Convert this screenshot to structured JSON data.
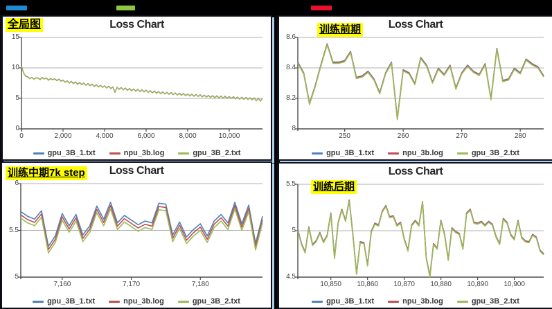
{
  "page": {
    "background": "#000000",
    "grid_color": "#b0b0b0",
    "axis_color": "#4d4d4d"
  },
  "top_bars": [
    {
      "name": "blue-bar",
      "color": "#1d8ad2"
    },
    {
      "name": "green-bar",
      "color": "#8ec641"
    },
    {
      "name": "red-bar",
      "color": "#e8112d"
    }
  ],
  "chart_data": [
    {
      "type": "line",
      "title": "Loss Chart",
      "annotation": "全局图",
      "xlim": [
        0,
        11600
      ],
      "ylim": [
        0,
        15
      ],
      "yticks": [
        {
          "v": 0,
          "label": "0"
        },
        {
          "v": 5,
          "label": "5"
        },
        {
          "v": 10,
          "label": "10"
        },
        {
          "v": 15,
          "label": "15"
        }
      ],
      "xticks": [
        {
          "v": 0,
          "label": "0"
        },
        {
          "v": 2000,
          "label": "2,000"
        },
        {
          "v": 4000,
          "label": "4,000"
        },
        {
          "v": 6000,
          "label": "6,000"
        },
        {
          "v": 8000,
          "label": "8,000"
        },
        {
          "v": 10000,
          "label": "10,000"
        }
      ],
      "x0": 0,
      "dx": 100,
      "line_width": 1.3,
      "series": [
        {
          "name": "gpu_3B_1.txt",
          "color": "#4f81bd",
          "offset": 0.05
        },
        {
          "name": "npu_3b.log",
          "color": "#c0504d",
          "offset": 0.025
        },
        {
          "name": "gpu_3B_2.txt",
          "color": "#9bbb59",
          "offset": 0
        }
      ],
      "values": [
        10.3,
        9.15,
        8.6,
        8.5,
        8.2,
        8.42,
        8.1,
        8.35,
        8.28,
        8.05,
        8.38,
        8.16,
        8.3,
        7.95,
        8.22,
        8.02,
        8.18,
        7.88,
        8.12,
        7.8,
        7.95,
        7.62,
        7.85,
        7.48,
        7.76,
        7.4,
        7.65,
        7.3,
        7.55,
        7.22,
        7.48,
        7.12,
        7.38,
        7.05,
        7.3,
        6.92,
        7.2,
        6.85,
        7.1,
        6.78,
        7.02,
        6.68,
        6.95,
        6.58,
        6.85,
        5.95,
        6.78,
        6.45,
        6.72,
        6.38,
        6.65,
        6.3,
        6.58,
        6.22,
        6.5,
        6.15,
        6.45,
        6.08,
        6.38,
        6.02,
        6.3,
        5.95,
        6.22,
        5.88,
        6.15,
        5.82,
        6.08,
        5.75,
        6.02,
        5.7,
        5.95,
        5.64,
        5.9,
        5.58,
        5.85,
        5.52,
        5.8,
        5.48,
        5.75,
        5.42,
        5.68,
        5.38,
        5.65,
        5.32,
        5.6,
        5.28,
        5.55,
        5.22,
        5.5,
        5.18,
        5.45,
        5.12,
        5.42,
        5.08,
        5.38,
        5.05,
        5.35,
        5.0,
        5.3,
        4.98,
        5.26,
        4.95,
        5.22,
        4.9,
        5.18,
        4.85,
        5.15,
        4.82,
        5.12,
        4.78,
        5.08,
        4.72,
        5.05,
        4.58,
        5.0,
        4.52,
        4.95
      ]
    },
    {
      "type": "line",
      "title": "Loss Chart",
      "annotation": "训练前期",
      "xlim": [
        242,
        284
      ],
      "ylim": [
        8,
        8.6
      ],
      "yticks": [
        {
          "v": 8,
          "label": "8"
        },
        {
          "v": 8.2,
          "label": "8.2"
        },
        {
          "v": 8.4,
          "label": "8.4"
        },
        {
          "v": 8.6,
          "label": "8.6"
        }
      ],
      "xticks": [
        {
          "v": 250,
          "label": "250"
        },
        {
          "v": 260,
          "label": "260"
        },
        {
          "v": 270,
          "label": "270"
        },
        {
          "v": 280,
          "label": "280"
        }
      ],
      "x0": 242,
      "dx": 1,
      "line_width": 1.6,
      "series": [
        {
          "name": "gpu_3B_1.txt",
          "color": "#4f81bd",
          "offset": 0.008
        },
        {
          "name": "npu_3b.log",
          "color": "#c0504d",
          "offset": 0.005
        },
        {
          "name": "gpu_3B_2.txt",
          "color": "#9bbb59",
          "offset": 0
        }
      ],
      "values": [
        8.43,
        8.36,
        8.16,
        8.28,
        8.42,
        8.55,
        8.43,
        8.43,
        8.44,
        8.5,
        8.33,
        8.34,
        8.37,
        8.32,
        8.23,
        8.36,
        8.43,
        8.06,
        8.38,
        8.36,
        8.29,
        8.46,
        8.41,
        8.3,
        8.39,
        8.35,
        8.41,
        8.26,
        8.36,
        8.41,
        8.37,
        8.35,
        8.42,
        8.19,
        8.52,
        8.31,
        8.32,
        8.39,
        8.36,
        8.45,
        8.42,
        8.4,
        8.34
      ]
    },
    {
      "type": "line",
      "title": "Loss Chart",
      "annotation": "训练中期7k step",
      "xlim": [
        7154,
        7189
      ],
      "ylim": [
        5,
        6
      ],
      "yticks": [
        {
          "v": 5,
          "label": "5"
        },
        {
          "v": 5.5,
          "label": "5.5"
        },
        {
          "v": 6,
          "label": "6"
        }
      ],
      "xticks": [
        {
          "v": 7160,
          "label": "7,160"
        },
        {
          "v": 7170,
          "label": "7,170"
        },
        {
          "v": 7180,
          "label": "7,180"
        }
      ],
      "x0": 7154,
      "dx": 1,
      "line_width": 1.6,
      "series": [
        {
          "name": "gpu_3B_1.txt",
          "color": "#4f81bd",
          "offset": 0
        },
        {
          "name": "npu_3b.log",
          "color": "#c0504d",
          "offset": -0.035
        },
        {
          "name": "gpu_3B_2.txt",
          "color": "#9bbb59",
          "offset": -0.07
        }
      ],
      "values": [
        5.7,
        5.65,
        5.62,
        5.71,
        5.33,
        5.44,
        5.68,
        5.55,
        5.67,
        5.45,
        5.55,
        5.76,
        5.62,
        5.8,
        5.58,
        5.66,
        5.61,
        5.56,
        5.6,
        5.58,
        5.79,
        5.78,
        5.45,
        5.59,
        5.43,
        5.51,
        5.57,
        5.44,
        5.6,
        5.67,
        5.58,
        5.8,
        5.57,
        5.77,
        5.36,
        5.65
      ]
    },
    {
      "type": "line",
      "title": "Loss Chart",
      "annotation": "训练后期",
      "xlim": [
        10841,
        10908
      ],
      "ylim": [
        4.5,
        5.5
      ],
      "yticks": [
        {
          "v": 4.5,
          "label": "4.5"
        },
        {
          "v": 5,
          "label": "5"
        },
        {
          "v": 5.5,
          "label": "5.5"
        }
      ],
      "xticks": [
        {
          "v": 10850,
          "label": "10,850"
        },
        {
          "v": 10860,
          "label": "10,860"
        },
        {
          "v": 10870,
          "label": "10,870"
        },
        {
          "v": 10880,
          "label": "10,880"
        },
        {
          "v": 10890,
          "label": "10,890"
        },
        {
          "v": 10900,
          "label": "10,900"
        }
      ],
      "x0": 10841,
      "dx": 1,
      "line_width": 1.6,
      "series": [
        {
          "name": "gpu_3B_1.txt",
          "color": "#4f81bd",
          "offset": 0.012
        },
        {
          "name": "npu_3b.log",
          "color": "#c0504d",
          "offset": 0.008
        },
        {
          "name": "gpu_3B_2.txt",
          "color": "#9bbb59",
          "offset": 0
        }
      ],
      "values": [
        5.0,
        4.85,
        4.76,
        5.03,
        4.84,
        4.88,
        4.97,
        4.87,
        4.94,
        5.18,
        4.7,
        5.08,
        5.22,
        5.1,
        5.32,
        4.95,
        4.53,
        4.87,
        4.86,
        4.62,
        4.98,
        5.07,
        5.05,
        5.2,
        5.26,
        5.14,
        5.15,
        5.05,
        5.08,
        4.9,
        4.78,
        5.05,
        5.1,
        5.05,
        5.3,
        4.7,
        4.5,
        4.85,
        4.8,
        5.1,
        4.95,
        4.68,
        5.02,
        4.98,
        4.96,
        4.8,
        5.18,
        5.22,
        5.08,
        5.07,
        5.09,
        5.05,
        5.09,
        5.06,
        4.93,
        4.85,
        5.12,
        5.08,
        4.95,
        4.9,
        5.1,
        4.92,
        4.88,
        4.87,
        4.95,
        4.92,
        4.78,
        4.74
      ]
    }
  ]
}
